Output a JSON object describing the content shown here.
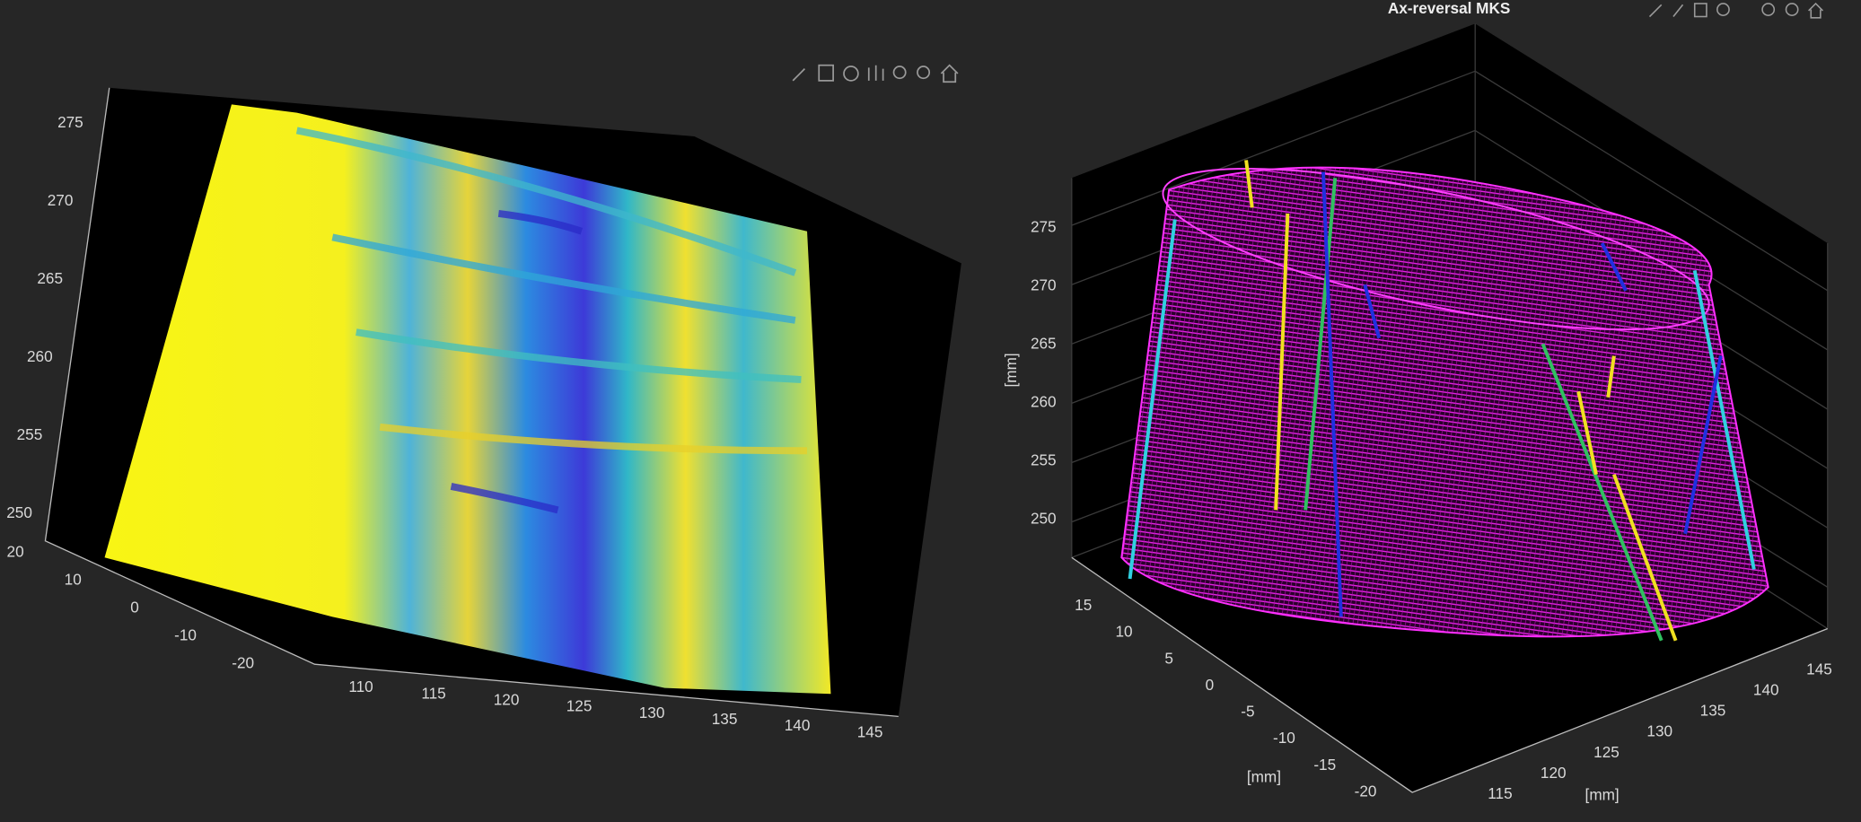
{
  "left_plot": {
    "z_ticks": [
      "275",
      "270",
      "265",
      "260",
      "255",
      "250"
    ],
    "y_ticks": [
      "20",
      "10",
      "0",
      "-10",
      "-20"
    ],
    "x_ticks": [
      "110",
      "115",
      "120",
      "125",
      "130",
      "135",
      "140",
      "145"
    ]
  },
  "right_plot": {
    "title": "Ax-reversal MKS",
    "z_label": "[mm]",
    "z_ticks": [
      "275",
      "270",
      "265",
      "260",
      "255",
      "250"
    ],
    "y_label": "[mm]",
    "y_ticks": [
      "15",
      "10",
      "5",
      "0",
      "-5",
      "-10",
      "-15",
      "-20"
    ],
    "x_label": "[mm]",
    "x_ticks": [
      "115",
      "120",
      "125",
      "130",
      "135",
      "140",
      "145"
    ]
  }
}
